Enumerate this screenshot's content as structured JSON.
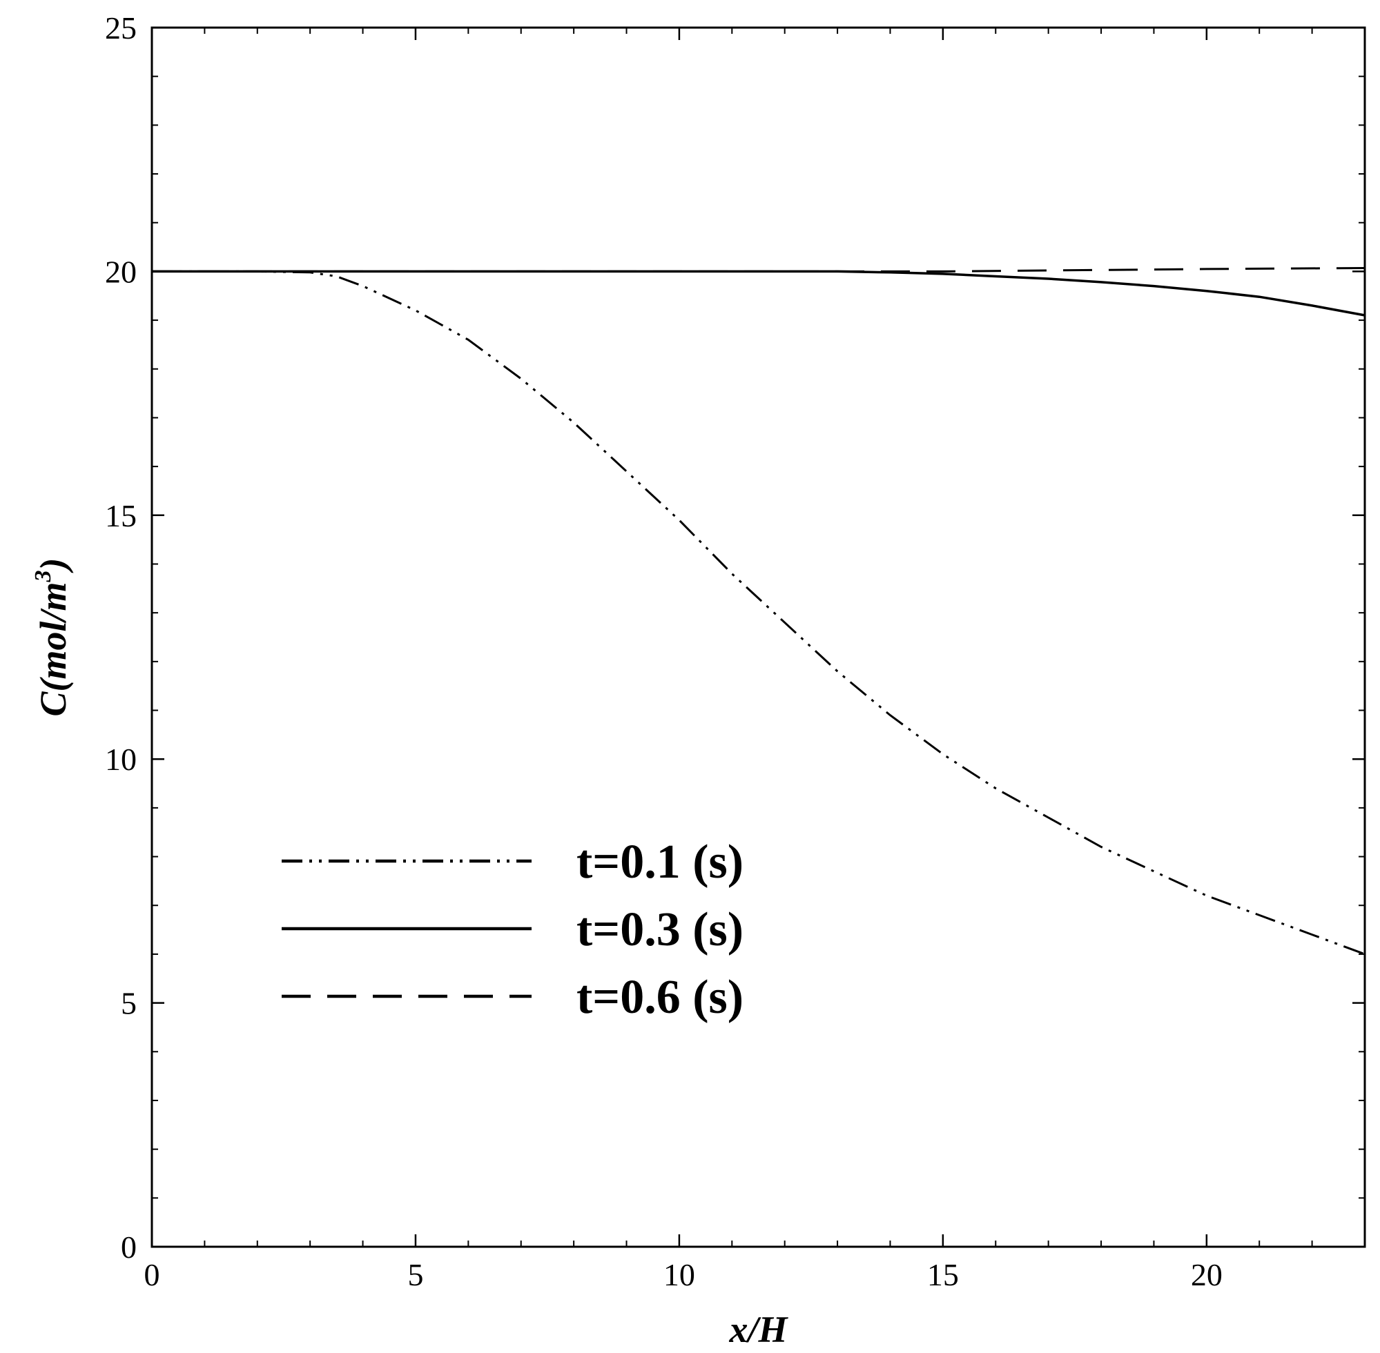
{
  "chart_data": {
    "type": "line",
    "xlabel": "x/H",
    "ylabel_main": "C(mol/m",
    "ylabel_sup": "3",
    "ylabel_close": ")",
    "xlim": [
      0,
      23
    ],
    "ylim": [
      0,
      25
    ],
    "xticks": [
      0,
      5,
      10,
      15,
      20
    ],
    "yticks": [
      0,
      5,
      10,
      15,
      20,
      25
    ],
    "x_minor_step": 1,
    "y_minor_step": 1,
    "grid": false,
    "legend_position": "lower-left",
    "series": [
      {
        "name": "t=0.1 (s)",
        "style": "dash-dot-dot",
        "color": "#000000",
        "x": [
          0,
          1,
          2,
          3,
          3.5,
          4,
          5,
          6,
          7,
          8,
          9,
          10,
          11,
          12,
          13,
          14,
          15,
          16,
          17,
          18,
          19,
          20,
          21,
          22,
          23
        ],
        "y": [
          20.0,
          20.0,
          20.0,
          19.98,
          19.9,
          19.7,
          19.2,
          18.6,
          17.8,
          16.9,
          15.9,
          14.9,
          13.8,
          12.8,
          11.8,
          10.9,
          10.1,
          9.4,
          8.8,
          8.2,
          7.7,
          7.2,
          6.8,
          6.4,
          6.0
        ]
      },
      {
        "name": "t=0.3 (s)",
        "style": "solid",
        "color": "#000000",
        "x": [
          0,
          2,
          4,
          6,
          8,
          10,
          12,
          13,
          14,
          15,
          16,
          17,
          18,
          19,
          20,
          21,
          22,
          23
        ],
        "y": [
          20.0,
          20.0,
          20.0,
          20.0,
          20.0,
          20.0,
          20.0,
          20.0,
          19.98,
          19.95,
          19.9,
          19.85,
          19.78,
          19.7,
          19.6,
          19.48,
          19.3,
          19.1
        ]
      },
      {
        "name": "t=0.6 (s)",
        "style": "dashed",
        "color": "#000000",
        "x": [
          0,
          5,
          10,
          15,
          20,
          23
        ],
        "y": [
          20.0,
          20.0,
          20.0,
          20.0,
          20.05,
          20.07
        ]
      }
    ]
  }
}
